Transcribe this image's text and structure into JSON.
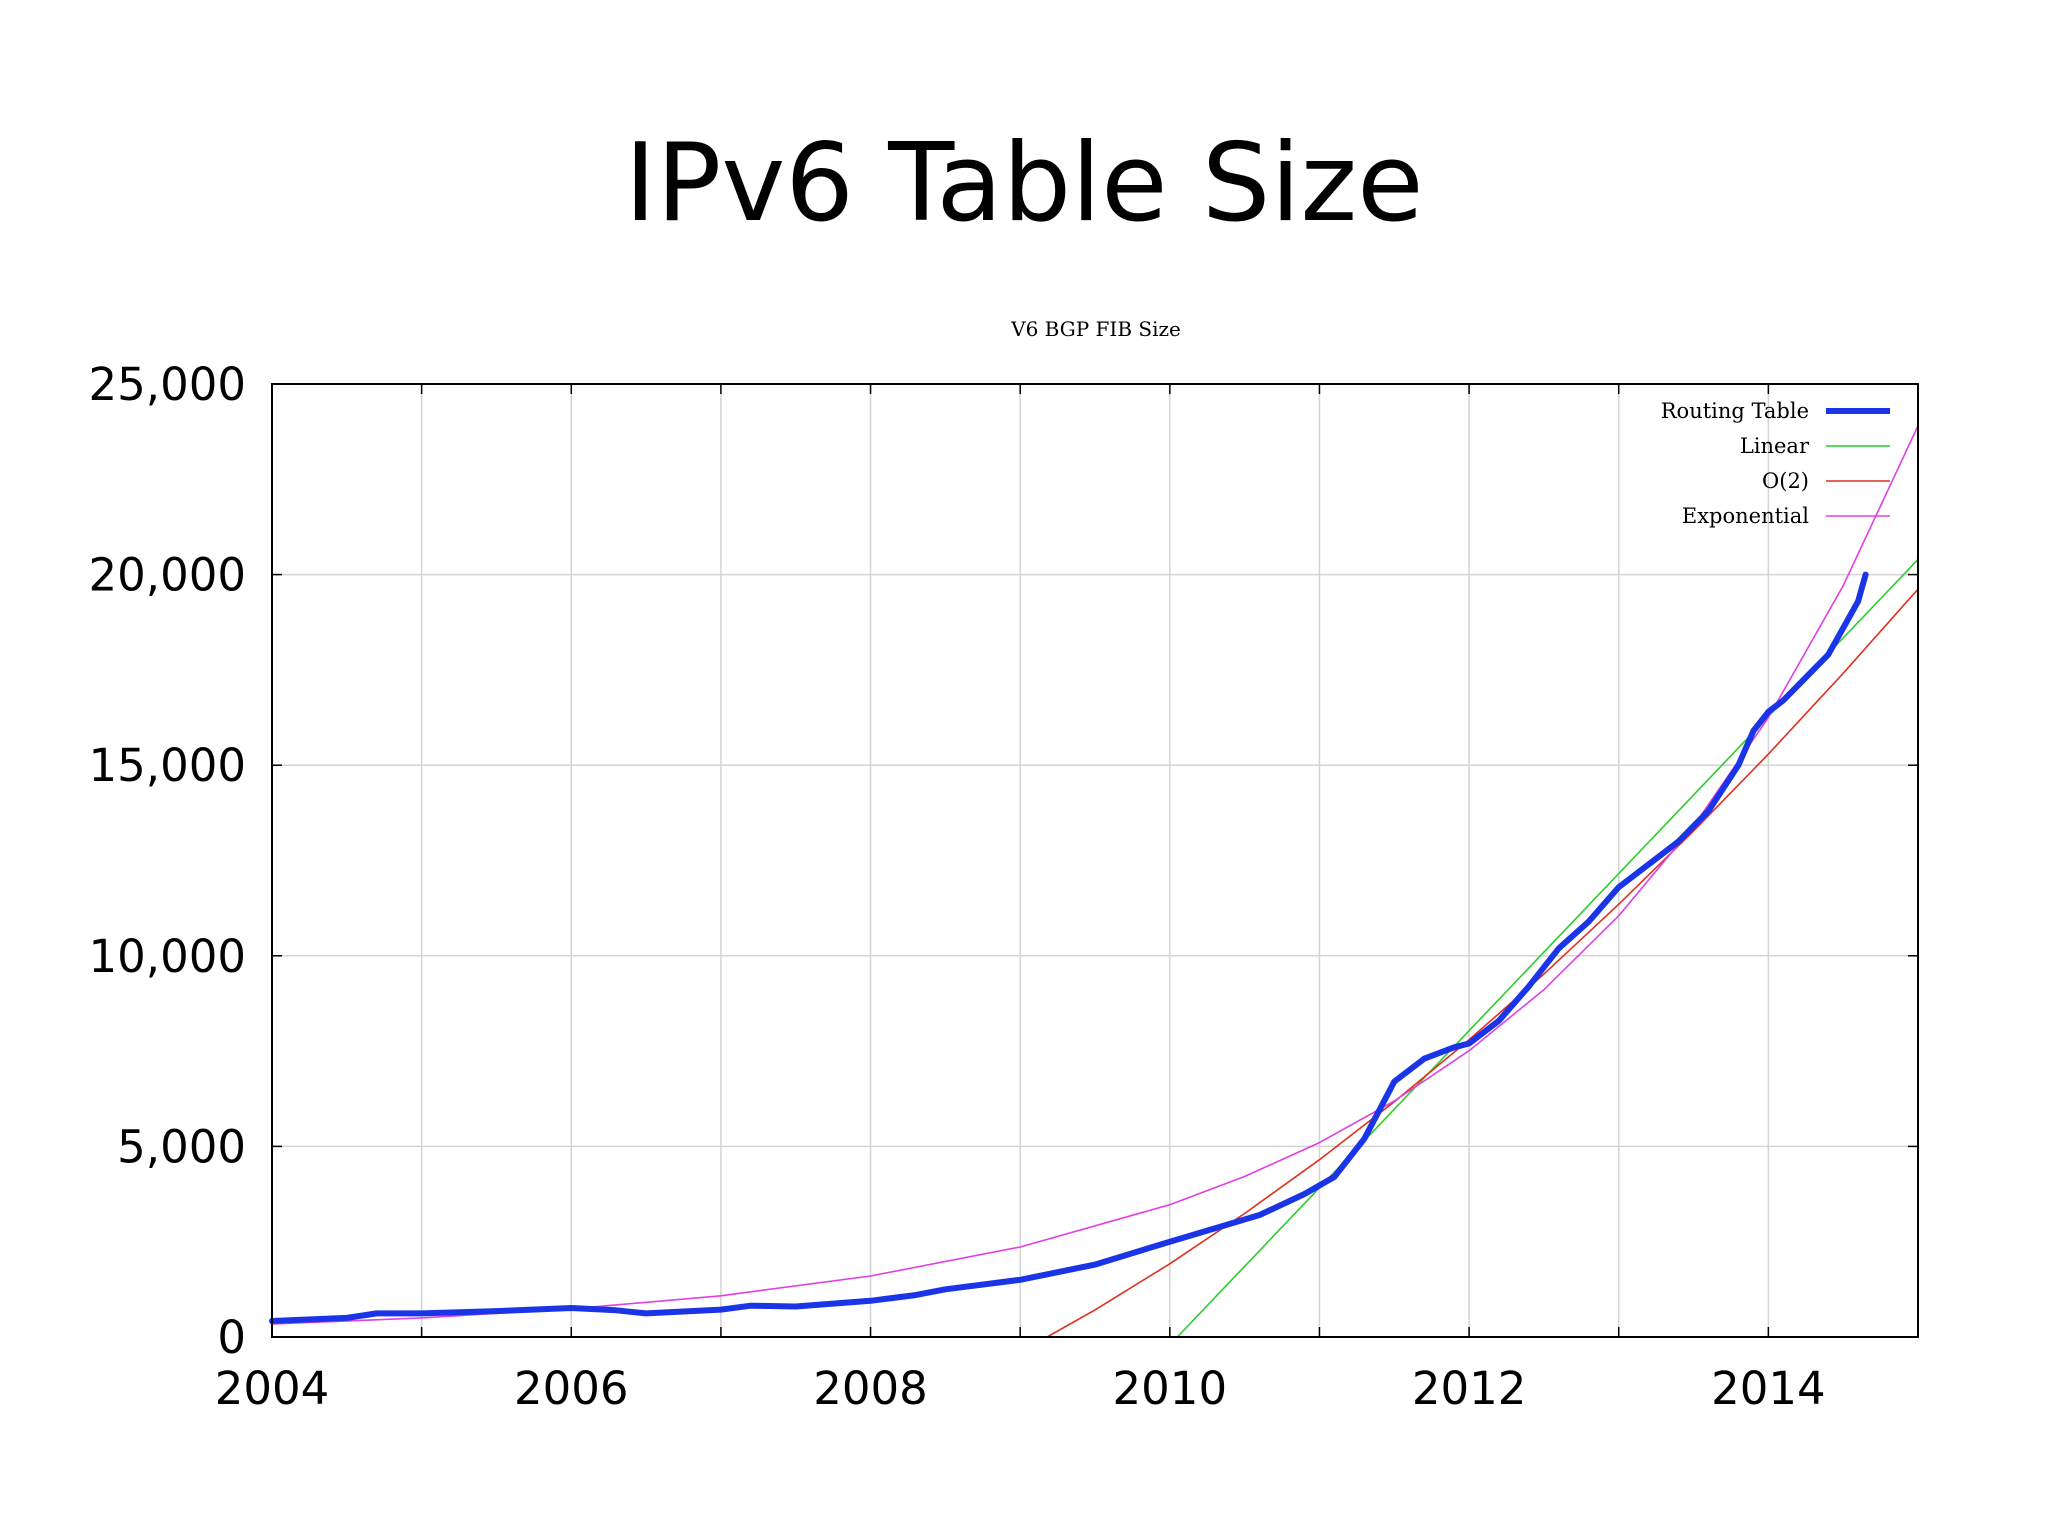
{
  "slide": {
    "title": "IPv6 Table Size"
  },
  "chart_data": {
    "type": "line",
    "title": "V6 BGP FIB Size",
    "xlabel": "",
    "ylabel": "",
    "xlim": [
      2004,
      2015
    ],
    "ylim": [
      0,
      25000
    ],
    "grid": true,
    "legend_position": "top-right",
    "x_ticks": [
      2004,
      2005,
      2006,
      2007,
      2008,
      2009,
      2010,
      2011,
      2012,
      2013,
      2014,
      2015
    ],
    "x_tick_labels": [
      {
        "value": 2004,
        "label": "2004"
      },
      {
        "value": 2006,
        "label": "2006"
      },
      {
        "value": 2008,
        "label": "2008"
      },
      {
        "value": 2010,
        "label": "2010"
      },
      {
        "value": 2012,
        "label": "2012"
      },
      {
        "value": 2014,
        "label": "2014"
      }
    ],
    "y_tick_labels": [
      {
        "value": 0,
        "label": "0"
      },
      {
        "value": 5000,
        "label": "5,000"
      },
      {
        "value": 10000,
        "label": "10,000"
      },
      {
        "value": 15000,
        "label": "15,000"
      },
      {
        "value": 20000,
        "label": "20,000"
      },
      {
        "value": 25000,
        "label": "25,000"
      }
    ],
    "series": [
      {
        "name": "Routing Table",
        "color": "#1a35e8",
        "x": [
          2004.0,
          2004.5,
          2004.7,
          2005.0,
          2005.5,
          2006.0,
          2006.3,
          2006.5,
          2007.0,
          2007.2,
          2007.5,
          2008.0,
          2008.3,
          2008.5,
          2009.0,
          2009.5,
          2010.0,
          2010.3,
          2010.6,
          2010.9,
          2011.1,
          2011.3,
          2011.5,
          2011.7,
          2011.9,
          2012.0,
          2012.2,
          2012.4,
          2012.6,
          2012.8,
          2013.0,
          2013.2,
          2013.4,
          2013.6,
          2013.8,
          2013.9,
          2014.0,
          2014.1,
          2014.2,
          2014.3,
          2014.4,
          2014.5,
          2014.6,
          2014.65
        ],
        "values": [
          420,
          500,
          620,
          620,
          680,
          760,
          700,
          620,
          720,
          820,
          800,
          950,
          1100,
          1250,
          1500,
          1900,
          2500,
          2850,
          3200,
          3750,
          4200,
          5200,
          6700,
          7300,
          7600,
          7700,
          8300,
          9200,
          10200,
          10900,
          11800,
          12400,
          13000,
          13800,
          15000,
          15900,
          16400,
          16700,
          17100,
          17500,
          17900,
          18600,
          19300,
          20000
        ]
      },
      {
        "name": "Linear",
        "color": "#2ecc2e",
        "x": [
          2010.05,
          2015.0
        ],
        "values": [
          0,
          20400
        ]
      },
      {
        "name": "O(2)",
        "color": "#e03020",
        "x": [
          2009.18,
          2009.5,
          2010.0,
          2010.5,
          2011.0,
          2011.5,
          2012.0,
          2012.5,
          2013.0,
          2013.5,
          2014.0,
          2014.5,
          2015.0
        ],
        "values": [
          0,
          710,
          1920,
          3240,
          4650,
          6170,
          7800,
          9520,
          11350,
          13270,
          15290,
          17410,
          19620
        ]
      },
      {
        "name": "Exponential",
        "color": "#e040e0",
        "x": [
          2004.0,
          2005.0,
          2006.0,
          2007.0,
          2008.0,
          2009.0,
          2010.0,
          2010.5,
          2011.0,
          2011.5,
          2012.0,
          2012.5,
          2013.0,
          2013.5,
          2014.0,
          2014.5,
          2015.0
        ],
        "values": [
          340,
          500,
          740,
          1080,
          1600,
          2360,
          3470,
          4210,
          5100,
          6190,
          7510,
          9110,
          11050,
          13400,
          16250,
          19710,
          23900
        ]
      }
    ]
  }
}
